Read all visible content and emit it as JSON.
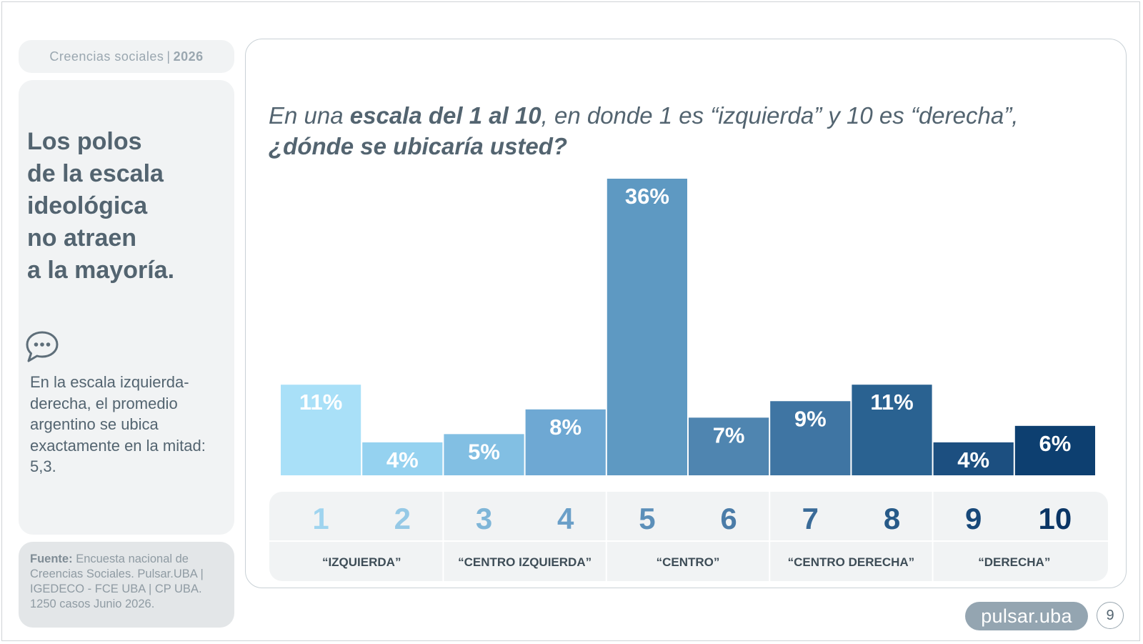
{
  "header": {
    "section": "Creencias sociales",
    "separator": "|",
    "year": "2026"
  },
  "sidebar": {
    "headline": "Los polos\nde la escala\nideológica\nno atraen\na la mayoría.",
    "icon": "speech-bubble-icon",
    "summary": "En la escala izquierda-derecha, el promedio argentino se ubica exactamente en la mitad: 5,3."
  },
  "source": {
    "label": "Fuente:",
    "text": "Encuesta nacional de Creencias Sociales. Pulsar.UBA | IGEDECO - FCE UBA | CP UBA. 1250 casos Junio 2026."
  },
  "question": {
    "p1": "En una ",
    "p2": "escala del 1 al 10",
    "p3": ", en donde 1 es “izquierda” y 10 es “derecha”,",
    "p4": "¿dónde se ubicaría usted?"
  },
  "chart_data": {
    "type": "bar",
    "categories": [
      "1",
      "2",
      "3",
      "4",
      "5",
      "6",
      "7",
      "8",
      "9",
      "10"
    ],
    "values": [
      11,
      4,
      5,
      8,
      36,
      7,
      9,
      11,
      4,
      6
    ],
    "value_labels": [
      "11%",
      "4%",
      "5%",
      "8%",
      "36%",
      "7%",
      "9%",
      "11%",
      "4%",
      "6%"
    ],
    "colors": [
      "#a9e0f8",
      "#95d2f0",
      "#82bfe3",
      "#6ea8d3",
      "#5e99c2",
      "#4f85b0",
      "#3f75a3",
      "#2a6291",
      "#1c4f80",
      "#0d3f70"
    ],
    "label_colors": [
      "#9fd4ef",
      "#95c9e6",
      "#7fb6d8",
      "#6a9fc8",
      "#5b8fb9",
      "#4b7ca8",
      "#3a6b98",
      "#275a88",
      "#174879",
      "#0a3565"
    ],
    "groups": [
      {
        "label": "“IZQUIERDA”",
        "span": [
          1,
          2
        ]
      },
      {
        "label": "“CENTRO IZQUIERDA”",
        "span": [
          3,
          4
        ]
      },
      {
        "label": "“CENTRO”",
        "span": [
          5,
          6
        ]
      },
      {
        "label": "“CENTRO DERECHA”",
        "span": [
          7,
          8
        ]
      },
      {
        "label": "“DERECHA”",
        "span": [
          9,
          10
        ]
      }
    ],
    "ylim": [
      0,
      36
    ],
    "grid": false,
    "xlabel": "",
    "ylabel": ""
  },
  "footer": {
    "logo": "pulsar.uba",
    "page": "9"
  }
}
